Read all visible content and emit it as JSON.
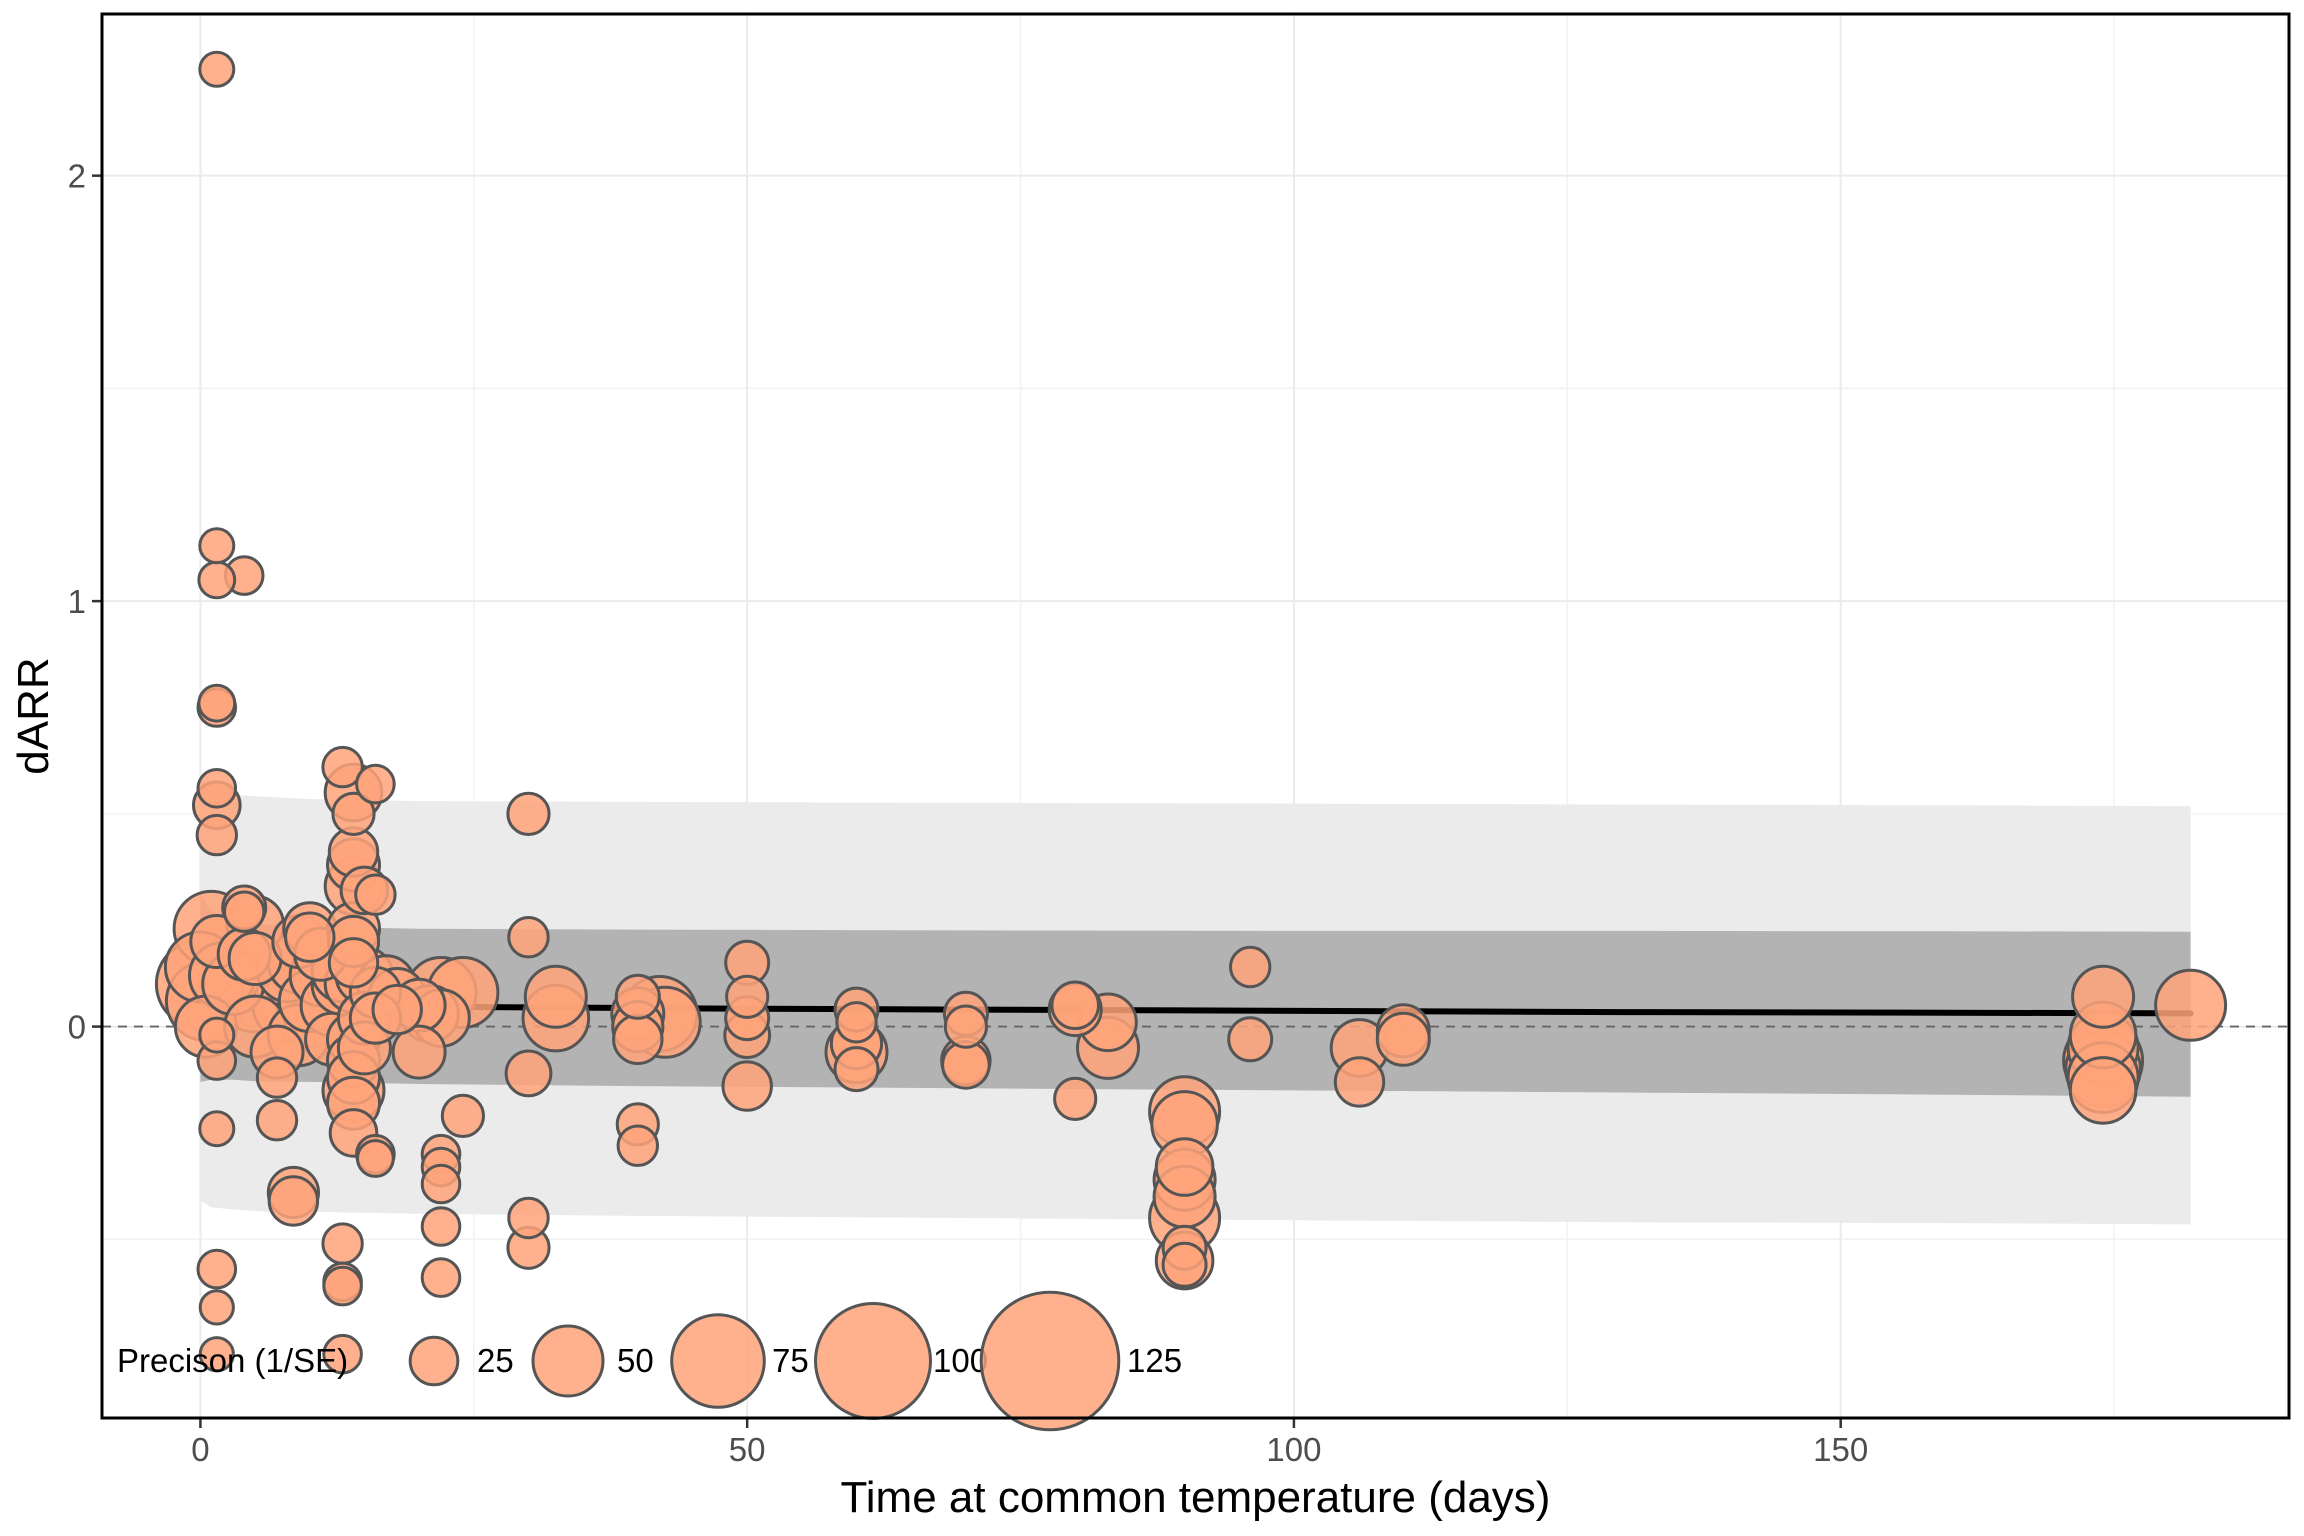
{
  "chart_data": {
    "type": "scatter",
    "xlabel": "Time at common temperature (days)",
    "ylabel": "dARR",
    "xlim": [
      -9,
      191
    ],
    "ylim": [
      -0.92,
      2.38
    ],
    "x_ticks": [
      0,
      50,
      100,
      150
    ],
    "y_ticks": [
      0,
      1,
      2
    ],
    "grid": true,
    "reference_line_y": 0,
    "legend": {
      "title": "Precison (1/SE)",
      "placement": "bottom-left",
      "entries": [
        {
          "label": "25",
          "value": 25
        },
        {
          "label": "50",
          "value": 50
        },
        {
          "label": "75",
          "value": 75
        },
        {
          "label": "100",
          "value": 100
        },
        {
          "label": "125",
          "value": 125
        }
      ]
    },
    "colors": {
      "point_fill": "#FFA37A",
      "point_stroke": "#555555",
      "outer_band": "#EBEBEB",
      "inner_band": "#B3B3B3",
      "fit_line": "#000000",
      "zero_line": "#666666"
    },
    "fit_line": [
      [
        0,
        0.09
      ],
      [
        1,
        0.075
      ],
      [
        3,
        0.063
      ],
      [
        6,
        0.056
      ],
      [
        10,
        0.052
      ],
      [
        15,
        0.049
      ],
      [
        20,
        0.047
      ],
      [
        30,
        0.045
      ],
      [
        50,
        0.042
      ],
      [
        70,
        0.04
      ],
      [
        90,
        0.038
      ],
      [
        110,
        0.036
      ],
      [
        130,
        0.034
      ],
      [
        150,
        0.033
      ],
      [
        170,
        0.032
      ],
      [
        182,
        0.031
      ]
    ],
    "inner_band": {
      "x": [
        0,
        1,
        3,
        6,
        10,
        20,
        40,
        70,
        100,
        130,
        160,
        182
      ],
      "upper": [
        0.31,
        0.27,
        0.25,
        0.24,
        0.235,
        0.23,
        0.228,
        0.226,
        0.225,
        0.225,
        0.224,
        0.223
      ],
      "lower": [
        -0.13,
        -0.125,
        -0.125,
        -0.13,
        -0.13,
        -0.135,
        -0.14,
        -0.145,
        -0.15,
        -0.155,
        -0.16,
        -0.165
      ]
    },
    "outer_band": {
      "x": [
        0,
        1,
        3,
        6,
        10,
        20,
        40,
        70,
        100,
        130,
        160,
        182
      ],
      "upper": [
        0.59,
        0.56,
        0.545,
        0.54,
        0.535,
        0.53,
        0.528,
        0.526,
        0.524,
        0.522,
        0.52,
        0.518
      ],
      "lower": [
        -0.41,
        -0.425,
        -0.43,
        -0.435,
        -0.435,
        -0.44,
        -0.445,
        -0.45,
        -0.455,
        -0.46,
        -0.462,
        -0.465
      ]
    },
    "series": [
      {
        "points": [
          {
            "x": 1.5,
            "y": 2.25,
            "p": 10
          },
          {
            "x": 1.5,
            "y": 1.13,
            "p": 10
          },
          {
            "x": 1.5,
            "y": 1.05,
            "p": 12
          },
          {
            "x": 4,
            "y": 1.06,
            "p": 14
          },
          {
            "x": 1.5,
            "y": 0.76,
            "p": 12
          },
          {
            "x": 1.5,
            "y": 0.75,
            "p": 14
          },
          {
            "x": 1.5,
            "y": 0.56,
            "p": 14
          },
          {
            "x": 1.5,
            "y": 0.52,
            "p": 24
          },
          {
            "x": 1.5,
            "y": 0.45,
            "p": 16
          },
          {
            "x": 1,
            "y": 0.23,
            "p": 55
          },
          {
            "x": 1.5,
            "y": 0.2,
            "p": 30
          },
          {
            "x": 4,
            "y": 0.28,
            "p": 20
          },
          {
            "x": 4,
            "y": 0.27,
            "p": 16
          },
          {
            "x": 5,
            "y": 0.24,
            "p": 35
          },
          {
            "x": 0,
            "y": 0.14,
            "p": 50
          },
          {
            "x": 0,
            "y": 0.1,
            "p": 70
          },
          {
            "x": 0.5,
            "y": 0.06,
            "p": 60
          },
          {
            "x": 0.5,
            "y": 0,
            "p": 40
          },
          {
            "x": 2,
            "y": 0.12,
            "p": 45
          },
          {
            "x": 3,
            "y": 0.1,
            "p": 40
          },
          {
            "x": 4,
            "y": 0.17,
            "p": 30
          },
          {
            "x": 5,
            "y": 0.08,
            "p": 60
          },
          {
            "x": 5,
            "y": 0,
            "p": 40
          },
          {
            "x": 5,
            "y": 0.16,
            "p": 30
          },
          {
            "x": 1.5,
            "y": -0.02,
            "p": 10
          },
          {
            "x": 1.5,
            "y": -0.08,
            "p": 14
          },
          {
            "x": 1.5,
            "y": -0.24,
            "p": 10
          },
          {
            "x": 1.5,
            "y": -0.57,
            "p": 14
          },
          {
            "x": 1.5,
            "y": -0.66,
            "p": 9
          },
          {
            "x": 1.5,
            "y": -0.77,
            "p": 9
          },
          {
            "x": 7,
            "y": 0.1,
            "p": 50
          },
          {
            "x": 7,
            "y": -0.06,
            "p": 30
          },
          {
            "x": 7,
            "y": -0.12,
            "p": 16
          },
          {
            "x": 7,
            "y": -0.22,
            "p": 16
          },
          {
            "x": 8,
            "y": 0.05,
            "p": 50
          },
          {
            "x": 8,
            "y": 0.13,
            "p": 40
          },
          {
            "x": 9,
            "y": 0.15,
            "p": 40
          },
          {
            "x": 9,
            "y": 0.2,
            "p": 30
          },
          {
            "x": 9,
            "y": -0.02,
            "p": 40
          },
          {
            "x": 8.5,
            "y": -0.39,
            "p": 28
          },
          {
            "x": 8.5,
            "y": -0.41,
            "p": 26
          },
          {
            "x": 10,
            "y": 0.23,
            "p": 30
          },
          {
            "x": 10,
            "y": 0.21,
            "p": 26
          },
          {
            "x": 10,
            "y": 0.06,
            "p": 40
          },
          {
            "x": 10,
            "y": 0.03,
            "p": 45
          },
          {
            "x": 11,
            "y": 0.12,
            "p": 40
          },
          {
            "x": 11,
            "y": 0.17,
            "p": 30
          },
          {
            "x": 12,
            "y": 0.05,
            "p": 40
          },
          {
            "x": 12,
            "y": -0.03,
            "p": 30
          },
          {
            "x": 13,
            "y": 0.1,
            "p": 40
          },
          {
            "x": 13,
            "y": 0.13,
            "p": 40
          },
          {
            "x": 13,
            "y": 0.61,
            "p": 16
          },
          {
            "x": 13,
            "y": -0.51,
            "p": 16
          },
          {
            "x": 13,
            "y": -0.6,
            "p": 14
          },
          {
            "x": 13,
            "y": -0.61,
            "p": 14
          },
          {
            "x": 13,
            "y": -0.77,
            "p": 14
          },
          {
            "x": 14,
            "y": 0.55,
            "p": 35
          },
          {
            "x": 14,
            "y": 0.5,
            "p": 18
          },
          {
            "x": 14,
            "y": 0.41,
            "p": 26
          },
          {
            "x": 14,
            "y": 0.38,
            "p": 30
          },
          {
            "x": 14,
            "y": 0.33,
            "p": 35
          },
          {
            "x": 14,
            "y": 0.23,
            "p": 30
          },
          {
            "x": 14,
            "y": 0.2,
            "p": 28
          },
          {
            "x": 14,
            "y": 0.15,
            "p": 26
          },
          {
            "x": 14,
            "y": 0.1,
            "p": 35
          },
          {
            "x": 14,
            "y": 0.02,
            "p": 55
          },
          {
            "x": 14,
            "y": -0.03,
            "p": 30
          },
          {
            "x": 14,
            "y": -0.08,
            "p": 30
          },
          {
            "x": 14,
            "y": -0.15,
            "p": 40
          },
          {
            "x": 14,
            "y": -0.12,
            "p": 30
          },
          {
            "x": 14,
            "y": -0.18,
            "p": 30
          },
          {
            "x": 14,
            "y": -0.25,
            "p": 24
          },
          {
            "x": 15,
            "y": 0.32,
            "p": 24
          },
          {
            "x": 15,
            "y": 0.12,
            "p": 35
          },
          {
            "x": 15,
            "y": 0.02,
            "p": 30
          },
          {
            "x": 15,
            "y": -0.05,
            "p": 30
          },
          {
            "x": 16,
            "y": 0.57,
            "p": 14
          },
          {
            "x": 16,
            "y": 0.31,
            "p": 16
          },
          {
            "x": 16,
            "y": 0.08,
            "p": 28
          },
          {
            "x": 16,
            "y": 0.02,
            "p": 28
          },
          {
            "x": 16,
            "y": -0.3,
            "p": 14
          },
          {
            "x": 16,
            "y": -0.31,
            "p": 12
          },
          {
            "x": 17,
            "y": 0.1,
            "p": 35
          },
          {
            "x": 18,
            "y": 0.07,
            "p": 35
          },
          {
            "x": 18,
            "y": 0.04,
            "p": 26
          },
          {
            "x": 20,
            "y": 0.05,
            "p": 30
          },
          {
            "x": 20,
            "y": -0.06,
            "p": 30
          },
          {
            "x": 21,
            "y": 0.03,
            "p": 35
          },
          {
            "x": 22,
            "y": 0.08,
            "p": 50
          },
          {
            "x": 22,
            "y": 0.02,
            "p": 35
          },
          {
            "x": 22,
            "y": -0.3,
            "p": 14
          },
          {
            "x": 22,
            "y": -0.33,
            "p": 14
          },
          {
            "x": 22,
            "y": -0.37,
            "p": 14
          },
          {
            "x": 22,
            "y": -0.47,
            "p": 14
          },
          {
            "x": 22,
            "y": -0.59,
            "p": 14
          },
          {
            "x": 24,
            "y": 0.08,
            "p": 50
          },
          {
            "x": 24,
            "y": -0.21,
            "p": 18
          },
          {
            "x": 30,
            "y": 0.5,
            "p": 18
          },
          {
            "x": 30,
            "y": 0.21,
            "p": 16
          },
          {
            "x": 30,
            "y": -0.11,
            "p": 22
          },
          {
            "x": 30,
            "y": -0.45,
            "p": 16
          },
          {
            "x": 30,
            "y": -0.52,
            "p": 18
          },
          {
            "x": 32.5,
            "y": 0.07,
            "p": 40
          },
          {
            "x": 32.5,
            "y": 0.02,
            "p": 45
          },
          {
            "x": 40,
            "y": 0.07,
            "p": 20
          },
          {
            "x": 40,
            "y": 0.03,
            "p": 30
          },
          {
            "x": 40,
            "y": 0,
            "p": 28
          },
          {
            "x": 40,
            "y": -0.03,
            "p": 26
          },
          {
            "x": 40,
            "y": -0.23,
            "p": 18
          },
          {
            "x": 40,
            "y": -0.28,
            "p": 16
          },
          {
            "x": 42,
            "y": 0.03,
            "p": 55
          },
          {
            "x": 42.5,
            "y": 0.01,
            "p": 50
          },
          {
            "x": 50,
            "y": 0.15,
            "p": 20
          },
          {
            "x": 50,
            "y": 0.07,
            "p": 18
          },
          {
            "x": 50,
            "y": 0.02,
            "p": 20
          },
          {
            "x": 50,
            "y": -0.02,
            "p": 22
          },
          {
            "x": 50,
            "y": -0.14,
            "p": 26
          },
          {
            "x": 60,
            "y": 0.04,
            "p": 20
          },
          {
            "x": 60,
            "y": 0.01,
            "p": 16
          },
          {
            "x": 60,
            "y": -0.04,
            "p": 28
          },
          {
            "x": 60,
            "y": -0.06,
            "p": 40
          },
          {
            "x": 60,
            "y": -0.1,
            "p": 20
          },
          {
            "x": 70,
            "y": 0.03,
            "p": 20
          },
          {
            "x": 70,
            "y": 0,
            "p": 18
          },
          {
            "x": 70,
            "y": -0.08,
            "p": 26
          },
          {
            "x": 70,
            "y": -0.09,
            "p": 24
          },
          {
            "x": 80,
            "y": 0.05,
            "p": 24
          },
          {
            "x": 80,
            "y": 0.04,
            "p": 30
          },
          {
            "x": 80,
            "y": -0.17,
            "p": 18
          },
          {
            "x": 83,
            "y": 0.01,
            "p": 35
          },
          {
            "x": 83,
            "y": -0.05,
            "p": 40
          },
          {
            "x": 90,
            "y": -0.2,
            "p": 50
          },
          {
            "x": 90,
            "y": -0.23,
            "p": 45
          },
          {
            "x": 90,
            "y": -0.33,
            "p": 35
          },
          {
            "x": 90,
            "y": -0.36,
            "p": 40
          },
          {
            "x": 90,
            "y": -0.4,
            "p": 40
          },
          {
            "x": 90,
            "y": -0.45,
            "p": 50
          },
          {
            "x": 90,
            "y": -0.52,
            "p": 20
          },
          {
            "x": 90,
            "y": -0.55,
            "p": 35
          },
          {
            "x": 90,
            "y": -0.56,
            "p": 20
          },
          {
            "x": 96,
            "y": 0.14,
            "p": 16
          },
          {
            "x": 96,
            "y": -0.03,
            "p": 20
          },
          {
            "x": 106,
            "y": -0.05,
            "p": 35
          },
          {
            "x": 106,
            "y": -0.13,
            "p": 26
          },
          {
            "x": 110,
            "y": -0.01,
            "p": 30
          },
          {
            "x": 110,
            "y": -0.03,
            "p": 30
          },
          {
            "x": 174,
            "y": 0.07,
            "p": 40
          },
          {
            "x": 174,
            "y": -0.02,
            "p": 45
          },
          {
            "x": 174,
            "y": -0.05,
            "p": 50
          },
          {
            "x": 174,
            "y": -0.08,
            "p": 60
          },
          {
            "x": 174,
            "y": -0.1,
            "p": 55
          },
          {
            "x": 174,
            "y": -0.12,
            "p": 50
          },
          {
            "x": 174,
            "y": -0.15,
            "p": 45
          },
          {
            "x": 182,
            "y": 0.05,
            "p": 50
          }
        ]
      }
    ]
  }
}
